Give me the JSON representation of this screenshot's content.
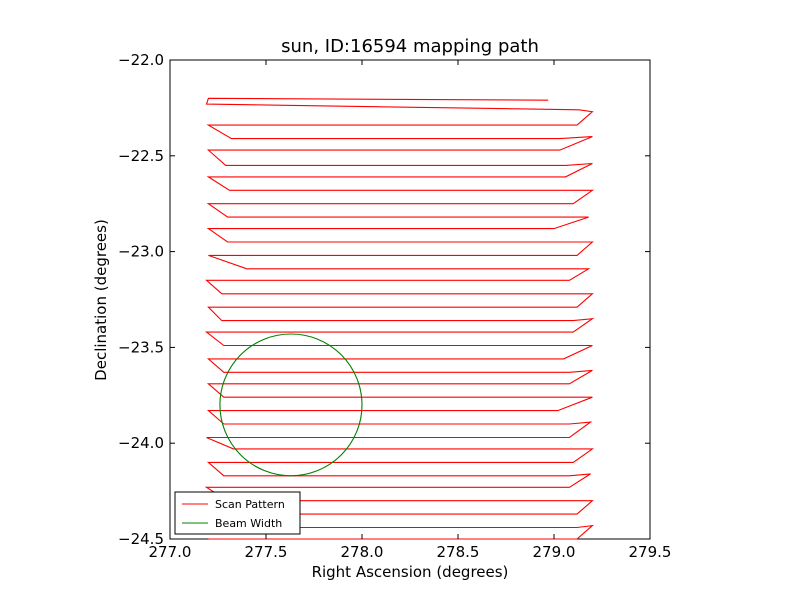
{
  "chart_data": {
    "type": "line",
    "title": "sun, ID:16594 mapping path",
    "xlabel": "Right Ascension (degrees)",
    "ylabel": "Declination (degrees)",
    "xlim": [
      277.0,
      279.5
    ],
    "ylim": [
      -24.5,
      -22.0
    ],
    "xticks": [
      277.0,
      277.5,
      278.0,
      278.5,
      279.0,
      279.5
    ],
    "xtick_labels": [
      "277.0",
      "277.5",
      "278.0",
      "278.5",
      "279.0",
      "279.5"
    ],
    "yticks": [
      -22.0,
      -22.5,
      -23.0,
      -23.5,
      -24.0,
      -24.5
    ],
    "ytick_labels": [
      "−22.0",
      "−22.5",
      "−23.0",
      "−23.5",
      "−24.0",
      "−24.5"
    ],
    "grid": false,
    "legend": {
      "placement": "lower-left"
    },
    "series": [
      {
        "name": "Scan Pattern",
        "color": "#ff0000",
        "x": [
          278.97,
          277.2,
          277.19,
          279.13,
          279.2,
          279.12,
          277.2,
          277.32,
          279.03,
          279.2,
          279.03,
          277.2,
          277.29,
          279.06,
          279.2,
          279.06,
          277.2,
          277.31,
          279.1,
          279.2,
          279.1,
          277.2,
          277.3,
          279.0,
          279.18,
          279.0,
          277.2,
          277.3,
          279.12,
          279.2,
          279.12,
          277.2,
          277.4,
          279.08,
          279.18,
          279.08,
          277.19,
          277.27,
          279.12,
          279.2,
          279.12,
          277.2,
          277.27,
          279.1,
          279.2,
          279.1,
          277.19,
          277.28,
          279.05,
          279.2,
          279.05,
          277.2,
          277.28,
          279.08,
          279.2,
          279.08,
          277.2,
          277.28,
          279.02,
          279.2,
          279.02,
          277.2,
          277.28,
          279.08,
          279.19,
          279.08,
          277.19,
          277.33,
          279.1,
          279.2,
          279.1,
          277.2,
          277.28,
          279.08,
          279.19,
          279.08,
          277.19,
          277.3,
          279.12,
          279.2,
          279.12,
          277.2,
          277.28,
          279.12,
          279.2,
          279.12,
          277.2
        ],
        "y": [
          -22.21,
          -22.2,
          -22.23,
          -22.26,
          -22.27,
          -22.34,
          -22.34,
          -22.41,
          -22.41,
          -22.4,
          -22.47,
          -22.47,
          -22.55,
          -22.55,
          -22.54,
          -22.61,
          -22.61,
          -22.68,
          -22.68,
          -22.68,
          -22.75,
          -22.75,
          -22.82,
          -22.82,
          -22.82,
          -22.88,
          -22.88,
          -22.95,
          -22.95,
          -22.95,
          -23.02,
          -23.02,
          -23.09,
          -23.09,
          -23.09,
          -23.15,
          -23.15,
          -23.22,
          -23.22,
          -23.22,
          -23.29,
          -23.29,
          -23.36,
          -23.36,
          -23.35,
          -23.42,
          -23.42,
          -23.49,
          -23.49,
          -23.49,
          -23.56,
          -23.56,
          -23.63,
          -23.63,
          -23.62,
          -23.69,
          -23.69,
          -23.76,
          -23.76,
          -23.76,
          -23.83,
          -23.83,
          -23.9,
          -23.9,
          -23.89,
          -23.97,
          -23.97,
          -24.03,
          -24.03,
          -24.03,
          -24.1,
          -24.1,
          -24.17,
          -24.17,
          -24.16,
          -24.23,
          -24.23,
          -24.3,
          -24.3,
          -24.3,
          -24.37,
          -24.37,
          -24.44,
          -24.44,
          -24.43,
          -24.5,
          -24.5
        ]
      },
      {
        "name": "Beam Width",
        "color": "#008000",
        "circle": {
          "center_x": 277.63,
          "center_y": -23.8,
          "radius_x": 0.37,
          "radius_y": 0.37
        }
      }
    ]
  }
}
